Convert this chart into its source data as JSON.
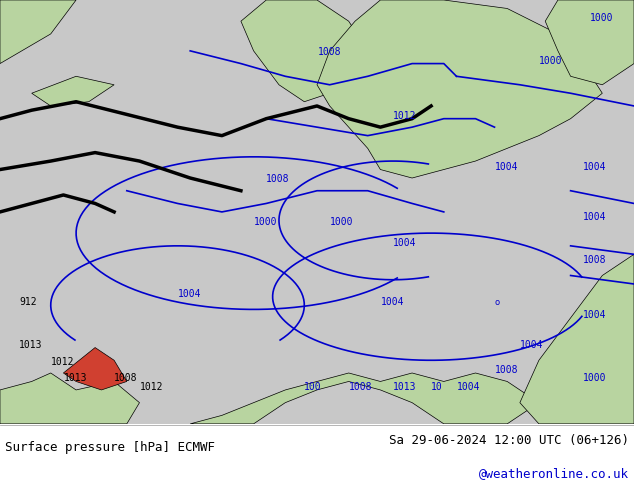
{
  "title_left": "Surface pressure [hPa] ECMWF",
  "title_right": "Sa 29-06-2024 12:00 UTC (06+126)",
  "credit": "@weatheronline.co.uk",
  "bg_color": "#d0d0d0",
  "map_bg_color": "#c8c8c8",
  "land_color": "#b8d4a0",
  "sea_color": "#d8e8f0",
  "isobar_color_blue": "#0000cc",
  "isobar_color_black": "#000000",
  "isobar_color_red": "#cc0000",
  "footer_bg": "#ffffff",
  "footer_text_color": "#000000",
  "credit_color": "#0000cc",
  "font_family": "monospace"
}
